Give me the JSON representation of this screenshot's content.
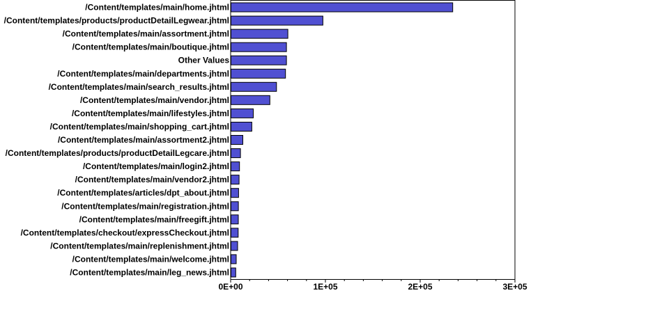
{
  "chart_data": {
    "type": "bar",
    "orientation": "horizontal",
    "title": "",
    "xlabel": "",
    "ylabel": "",
    "xlim": [
      0,
      300000
    ],
    "grid": false,
    "legend": "none",
    "bar_color": "#5050d2",
    "categories": [
      "/Content/templates/main/home.jhtml",
      "/Content/templates/products/productDetailLegwear.jhtml",
      "/Content/templates/main/assortment.jhtml",
      "/Content/templates/main/boutique.jhtml",
      "Other Values",
      "/Content/templates/main/departments.jhtml",
      "/Content/templates/main/search_results.jhtml",
      "/Content/templates/main/vendor.jhtml",
      "/Content/templates/main/lifestyles.jhtml",
      "/Content/templates/main/shopping_cart.jhtml",
      "/Content/templates/main/assortment2.jhtml",
      "/Content/templates/products/productDetailLegcare.jhtml",
      "/Content/templates/main/login2.jhtml",
      "/Content/templates/main/vendor2.jhtml",
      "/Content/templates/articles/dpt_about.jhtml",
      "/Content/templates/main/registration.jhtml",
      "/Content/templates/main/freegift.jhtml",
      "/Content/templates/checkout/expressCheckout.jhtml",
      "/Content/templates/main/replenishment.jhtml",
      "/Content/templates/main/welcome.jhtml",
      "/Content/templates/main/leg_news.jhtml"
    ],
    "values": [
      234000,
      97000,
      60000,
      58500,
      58500,
      57500,
      48000,
      41000,
      23500,
      22000,
      12500,
      10000,
      9000,
      8500,
      8000,
      7800,
      7700,
      7600,
      7000,
      5500,
      5000
    ],
    "x_ticks": [
      {
        "value": 0,
        "label": "0E+00"
      },
      {
        "value": 100000,
        "label": "1E+05"
      },
      {
        "value": 200000,
        "label": "2E+05"
      },
      {
        "value": 300000,
        "label": "3E+05"
      }
    ]
  }
}
